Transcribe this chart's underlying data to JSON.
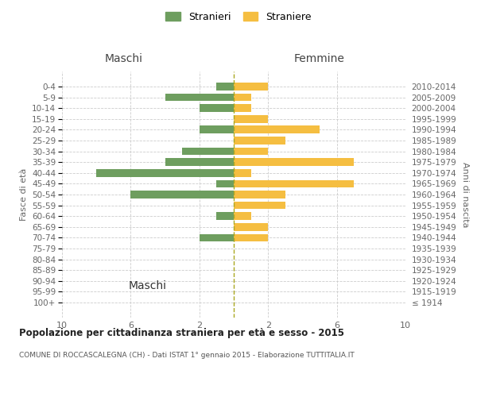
{
  "age_groups": [
    "100+",
    "95-99",
    "90-94",
    "85-89",
    "80-84",
    "75-79",
    "70-74",
    "65-69",
    "60-64",
    "55-59",
    "50-54",
    "45-49",
    "40-44",
    "35-39",
    "30-34",
    "25-29",
    "20-24",
    "15-19",
    "10-14",
    "5-9",
    "0-4"
  ],
  "birth_years": [
    "≤ 1914",
    "1915-1919",
    "1920-1924",
    "1925-1929",
    "1930-1934",
    "1935-1939",
    "1940-1944",
    "1945-1949",
    "1950-1954",
    "1955-1959",
    "1960-1964",
    "1965-1969",
    "1970-1974",
    "1975-1979",
    "1980-1984",
    "1985-1989",
    "1990-1994",
    "1995-1999",
    "2000-2004",
    "2005-2009",
    "2010-2014"
  ],
  "maschi": [
    0,
    0,
    0,
    0,
    0,
    0,
    2,
    0,
    1,
    0,
    6,
    1,
    8,
    4,
    3,
    0,
    2,
    0,
    2,
    4,
    1
  ],
  "femmine": [
    0,
    0,
    0,
    0,
    0,
    0,
    2,
    2,
    1,
    3,
    3,
    7,
    1,
    7,
    2,
    3,
    5,
    2,
    1,
    1,
    2
  ],
  "color_maschi": "#6e9e5f",
  "color_femmine": "#f5be41",
  "title": "Popolazione per cittadinanza straniera per età e sesso - 2015",
  "subtitle": "COMUNE DI ROCCASCALEGNA (CH) - Dati ISTAT 1° gennaio 2015 - Elaborazione TUTTITALIA.IT",
  "xlabel_left": "Maschi",
  "xlabel_right": "Femmine",
  "ylabel_left": "Fasce di età",
  "ylabel_right": "Anni di nascita",
  "legend_maschi": "Stranieri",
  "legend_femmine": "Straniere",
  "xlim": 10,
  "bg_color": "#ffffff",
  "grid_color": "#cccccc"
}
